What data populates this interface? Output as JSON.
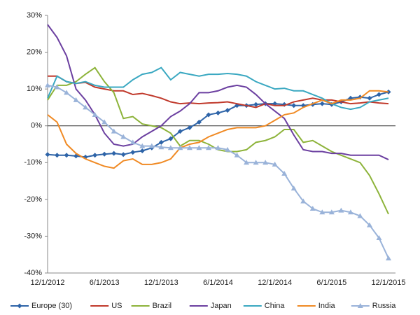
{
  "chart_data": {
    "type": "line",
    "categories": [
      "12/1/2012",
      null,
      null,
      null,
      null,
      null,
      "6/1/2013",
      null,
      null,
      null,
      null,
      null,
      "12/1/2013",
      null,
      null,
      null,
      null,
      null,
      "6/1/2014",
      null,
      null,
      null,
      null,
      null,
      "12/1/2014",
      null,
      null,
      null,
      null,
      null,
      "6/1/2015",
      null,
      null,
      null,
      null,
      null,
      "12/1/2015"
    ],
    "ylim": [
      -40,
      30
    ],
    "yticks": [
      {
        "value": -40,
        "label": "-40%"
      },
      {
        "value": -30,
        "label": "-30%"
      },
      {
        "value": -20,
        "label": "-20%"
      },
      {
        "value": -10,
        "label": "-10%"
      },
      {
        "value": 0,
        "label": "0%"
      },
      {
        "value": 10,
        "label": "10%"
      },
      {
        "value": 20,
        "label": "20%"
      },
      {
        "value": 30,
        "label": "30%"
      }
    ],
    "grid": false,
    "legend": "bottom",
    "series": [
      {
        "name": "Europe (30)",
        "color": "#2e64a8",
        "marker": "diamond",
        "values": [
          -7.8,
          -8,
          -8,
          -8.2,
          -8.5,
          -8,
          -7.7,
          -7.5,
          -7.8,
          -7.2,
          -6.8,
          -6,
          -4.5,
          -3.5,
          -1.5,
          -0.5,
          1,
          3,
          3.5,
          4.2,
          5.5,
          5.5,
          5.8,
          6,
          6,
          5.8,
          5.5,
          5.5,
          5.8,
          6,
          5.8,
          6.5,
          7.5,
          7.8,
          7.5,
          8.5,
          9.2
        ]
      },
      {
        "name": "US",
        "color": "#c0392b",
        "marker": "none",
        "values": [
          13.5,
          13.5,
          12,
          11.5,
          11.8,
          10.5,
          10,
          9.5,
          9.5,
          8.5,
          8.8,
          8.2,
          7.5,
          6.5,
          6,
          6.2,
          6,
          6.2,
          6.3,
          6.5,
          6,
          5.5,
          5,
          6,
          5.5,
          5.5,
          6.5,
          7,
          7.5,
          7,
          7,
          6.5,
          6,
          6.2,
          6.5,
          6.2,
          6
        ]
      },
      {
        "name": "Brazil",
        "color": "#8db33a",
        "marker": "none",
        "values": [
          7,
          11,
          11,
          12,
          14,
          15.8,
          12,
          9,
          2,
          2.5,
          0.5,
          0,
          -0.5,
          -2,
          -5.5,
          -4,
          -4,
          -5,
          -6.5,
          -7,
          -7,
          -6.5,
          -4.5,
          -4,
          -3,
          -1,
          -1,
          -4.5,
          -4,
          -5.5,
          -7,
          -8,
          -9,
          -10,
          -13.5,
          -18.5,
          -24
        ]
      },
      {
        "name": "Japan",
        "color": "#6b3fa0",
        "marker": "none",
        "values": [
          27.5,
          24,
          19,
          10,
          7,
          3,
          -2,
          -5,
          -5.5,
          -5,
          -3,
          -1.5,
          0,
          2.5,
          4,
          6,
          9,
          9,
          9.5,
          10.5,
          11,
          10.5,
          8.5,
          6,
          4,
          2,
          -2.5,
          -6.5,
          -7,
          -7,
          -7.5,
          -7.5,
          -8,
          -8,
          -8,
          -8,
          -9.2
        ]
      },
      {
        "name": "China",
        "color": "#3aa8c1",
        "marker": "none",
        "values": [
          7.5,
          13.5,
          12,
          11.5,
          12,
          11,
          10.5,
          10.5,
          10.5,
          12.5,
          14,
          14.5,
          15.8,
          12.5,
          14.5,
          14,
          13.5,
          14,
          14,
          14.2,
          14,
          13.5,
          12,
          11,
          10,
          10.2,
          9.5,
          9.5,
          8.5,
          7.5,
          6,
          5,
          4.5,
          5,
          6.5,
          7,
          7.5
        ]
      },
      {
        "name": "India",
        "color": "#f08a24",
        "marker": "none",
        "values": [
          3,
          1,
          -5,
          -7.5,
          -9,
          -10,
          -11,
          -11.5,
          -9.5,
          -9,
          -10.5,
          -10.5,
          -10,
          -9,
          -6,
          -5,
          -4.5,
          -3,
          -2,
          -1,
          -0.5,
          -0.5,
          -0.5,
          0,
          1.5,
          3,
          3.5,
          5,
          6,
          7,
          6,
          7,
          7,
          7.5,
          9.5,
          9.5,
          9.2
        ]
      },
      {
        "name": "Russia",
        "color": "#9ab3d9",
        "marker": "triangle",
        "values": [
          11,
          10.5,
          9,
          7,
          5,
          3,
          1,
          -1.5,
          -3,
          -4.5,
          -5.5,
          -5.5,
          -5.8,
          -6,
          -6,
          -6,
          -6,
          -6,
          -6,
          -6.5,
          -8,
          -10,
          -10,
          -10,
          -10.5,
          -13,
          -17,
          -20.5,
          -22.5,
          -23.5,
          -23.5,
          -23,
          -23.5,
          -24.5,
          -27,
          -30.5,
          -36
        ]
      }
    ]
  }
}
